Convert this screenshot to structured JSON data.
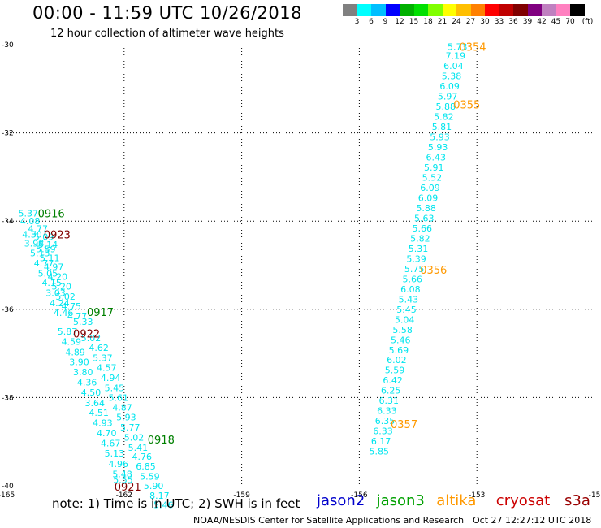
{
  "title": "00:00 - 11:59 UTC 10/26/2018",
  "subtitle": "12 hour collection of altimeter wave heights",
  "colorbar": {
    "colors": [
      "#808080",
      "#00ffff",
      "#00bfff",
      "#0000ff",
      "#00b000",
      "#00e000",
      "#80ff00",
      "#ffff00",
      "#ffbf00",
      "#ff8000",
      "#ff0000",
      "#c00000",
      "#800000",
      "#800080",
      "#c080c0",
      "#ff80c0",
      "#000000"
    ],
    "labels": [
      "3",
      "6",
      "9",
      "12",
      "15",
      "18",
      "21",
      "24",
      "27",
      "30",
      "33",
      "36",
      "39",
      "42",
      "45",
      "70"
    ],
    "unit": "(ft)"
  },
  "axes": {
    "lon_min": -165,
    "lon_max": -150,
    "lat_min": -40,
    "lat_max": -30,
    "lon_labels": [
      "-165",
      "-162",
      "-159",
      "-156",
      "-153",
      "-15"
    ],
    "lat_labels": [
      "-30",
      "-32",
      "-34",
      "-36",
      "-38",
      "-40"
    ],
    "grid": "dotted"
  },
  "tracks": [
    {
      "name": "west-track-a",
      "color": "#00e5ee",
      "points": [
        {
          "lon": -164.7,
          "lat": -33.82,
          "v": "5.37"
        },
        {
          "lon": -164.65,
          "lat": -34.0,
          "v": "4.08"
        },
        {
          "lon": -164.45,
          "lat": -34.17,
          "v": "4.77"
        },
        {
          "lon": -164.6,
          "lat": -34.3,
          "v": "4.30"
        },
        {
          "lon": -164.3,
          "lat": -34.36,
          "v": "5.09"
        },
        {
          "lon": -164.55,
          "lat": -34.5,
          "v": "3.98"
        },
        {
          "lon": -164.2,
          "lat": -34.53,
          "v": "5.14"
        },
        {
          "lon": -164.4,
          "lat": -34.72,
          "v": "5.13"
        },
        {
          "lon": -164.3,
          "lat": -34.95,
          "v": "4.77"
        },
        {
          "lon": -164.2,
          "lat": -35.18,
          "v": "5.05"
        },
        {
          "lon": -164.1,
          "lat": -35.4,
          "v": "4.15"
        },
        {
          "lon": -164.0,
          "lat": -35.63,
          "v": "3.03"
        },
        {
          "lon": -163.9,
          "lat": -35.86,
          "v": "4.24"
        },
        {
          "lon": -163.8,
          "lat": -36.08,
          "v": "4.46"
        },
        {
          "lon": -163.7,
          "lat": -36.5,
          "v": "5.87"
        },
        {
          "lon": -163.6,
          "lat": -36.73,
          "v": "4.59"
        },
        {
          "lon": -163.5,
          "lat": -36.97,
          "v": "4.89"
        },
        {
          "lon": -163.4,
          "lat": -37.19,
          "v": "3.90"
        },
        {
          "lon": -163.3,
          "lat": -37.42,
          "v": "3.80"
        },
        {
          "lon": -163.2,
          "lat": -37.65,
          "v": "4.36"
        },
        {
          "lon": -163.1,
          "lat": -37.88,
          "v": "4.50"
        },
        {
          "lon": -163.0,
          "lat": -38.12,
          "v": "3.64"
        },
        {
          "lon": -162.9,
          "lat": -38.34,
          "v": "4.51"
        },
        {
          "lon": -162.8,
          "lat": -38.57,
          "v": "4.93"
        },
        {
          "lon": -162.7,
          "lat": -38.8,
          "v": "4.70"
        },
        {
          "lon": -162.6,
          "lat": -39.03,
          "v": "4.67"
        },
        {
          "lon": -162.5,
          "lat": -39.26,
          "v": "5.13"
        },
        {
          "lon": -162.4,
          "lat": -39.5,
          "v": "4.96"
        },
        {
          "lon": -162.3,
          "lat": -39.73,
          "v": "5.48"
        },
        {
          "lon": -162.28,
          "lat": -39.86,
          "v": "5.55"
        }
      ]
    },
    {
      "name": "west-track-b",
      "color": "#00e5ee",
      "points": [
        {
          "lon": -164.25,
          "lat": -34.63,
          "v": "5.59"
        },
        {
          "lon": -164.15,
          "lat": -34.83,
          "v": "5.11"
        },
        {
          "lon": -164.05,
          "lat": -35.04,
          "v": "4.97"
        },
        {
          "lon": -163.95,
          "lat": -35.26,
          "v": "4.20"
        },
        {
          "lon": -163.85,
          "lat": -35.48,
          "v": "5.20"
        },
        {
          "lon": -163.75,
          "lat": -35.71,
          "v": "5.02"
        },
        {
          "lon": -163.6,
          "lat": -35.93,
          "v": "4.75"
        },
        {
          "lon": -163.45,
          "lat": -36.15,
          "v": "4.77"
        },
        {
          "lon": -163.3,
          "lat": -36.28,
          "v": "5.33"
        },
        {
          "lon": -163.1,
          "lat": -36.65,
          "v": "5.02"
        },
        {
          "lon": -162.9,
          "lat": -36.87,
          "v": "4.62"
        },
        {
          "lon": -162.8,
          "lat": -37.1,
          "v": "5.37"
        },
        {
          "lon": -162.7,
          "lat": -37.32,
          "v": "4.57"
        },
        {
          "lon": -162.6,
          "lat": -37.55,
          "v": "4.94"
        },
        {
          "lon": -162.5,
          "lat": -37.78,
          "v": "5.45"
        },
        {
          "lon": -162.4,
          "lat": -38.0,
          "v": "5.61"
        },
        {
          "lon": -162.3,
          "lat": -38.22,
          "v": "4.87"
        },
        {
          "lon": -162.2,
          "lat": -38.44,
          "v": "5.93"
        },
        {
          "lon": -162.1,
          "lat": -38.67,
          "v": "5.77"
        },
        {
          "lon": -162.0,
          "lat": -38.9,
          "v": "5.02"
        },
        {
          "lon": -161.9,
          "lat": -39.13,
          "v": "5.41"
        },
        {
          "lon": -161.8,
          "lat": -39.34,
          "v": "4.76"
        },
        {
          "lon": -161.7,
          "lat": -39.56,
          "v": "6.85"
        },
        {
          "lon": -161.6,
          "lat": -39.79,
          "v": "5.59"
        },
        {
          "lon": -161.5,
          "lat": -40.0,
          "v": "5.90"
        },
        {
          "lon": -161.35,
          "lat": -40.22,
          "v": "8.17"
        },
        {
          "lon": -161.25,
          "lat": -40.43,
          "v": "5.46"
        }
      ]
    },
    {
      "name": "east-track",
      "color": "#00e5ee",
      "points": [
        {
          "lon": -153.75,
          "lat": -30.05,
          "v": "5.73"
        },
        {
          "lon": -153.8,
          "lat": -30.25,
          "v": "7.19"
        },
        {
          "lon": -153.85,
          "lat": -30.48,
          "v": "6.04"
        },
        {
          "lon": -153.9,
          "lat": -30.71,
          "v": "5.38"
        },
        {
          "lon": -153.95,
          "lat": -30.94,
          "v": "6.09"
        },
        {
          "lon": -154.0,
          "lat": -31.17,
          "v": "5.97"
        },
        {
          "lon": -154.05,
          "lat": -31.4,
          "v": "5.88"
        },
        {
          "lon": -154.1,
          "lat": -31.63,
          "v": "5.82"
        },
        {
          "lon": -154.15,
          "lat": -31.86,
          "v": "5.81"
        },
        {
          "lon": -154.2,
          "lat": -32.09,
          "v": "5.93"
        },
        {
          "lon": -154.25,
          "lat": -32.32,
          "v": "5.93"
        },
        {
          "lon": -154.3,
          "lat": -32.55,
          "v": "6.43"
        },
        {
          "lon": -154.35,
          "lat": -32.78,
          "v": "5.91"
        },
        {
          "lon": -154.4,
          "lat": -33.01,
          "v": "5.52"
        },
        {
          "lon": -154.45,
          "lat": -33.24,
          "v": "6.09"
        },
        {
          "lon": -154.5,
          "lat": -33.47,
          "v": "6.09"
        },
        {
          "lon": -154.55,
          "lat": -33.7,
          "v": "5.88"
        },
        {
          "lon": -154.6,
          "lat": -33.93,
          "v": "5.63"
        },
        {
          "lon": -154.65,
          "lat": -34.16,
          "v": "5.66"
        },
        {
          "lon": -154.7,
          "lat": -34.39,
          "v": "5.82"
        },
        {
          "lon": -154.75,
          "lat": -34.62,
          "v": "5.31"
        },
        {
          "lon": -154.8,
          "lat": -34.85,
          "v": "5.39"
        },
        {
          "lon": -154.85,
          "lat": -35.08,
          "v": "5.75"
        },
        {
          "lon": -154.9,
          "lat": -35.31,
          "v": "5.66"
        },
        {
          "lon": -154.95,
          "lat": -35.54,
          "v": "6.08"
        },
        {
          "lon": -155.0,
          "lat": -35.77,
          "v": "5.43"
        },
        {
          "lon": -155.05,
          "lat": -36.0,
          "v": "5.45"
        },
        {
          "lon": -155.1,
          "lat": -36.23,
          "v": "5.04"
        },
        {
          "lon": -155.15,
          "lat": -36.46,
          "v": "5.58"
        },
        {
          "lon": -155.2,
          "lat": -36.69,
          "v": "5.46"
        },
        {
          "lon": -155.25,
          "lat": -36.92,
          "v": "5.69"
        },
        {
          "lon": -155.3,
          "lat": -37.15,
          "v": "6.02"
        },
        {
          "lon": -155.35,
          "lat": -37.38,
          "v": "5.59"
        },
        {
          "lon": -155.4,
          "lat": -37.61,
          "v": "6.42"
        },
        {
          "lon": -155.45,
          "lat": -37.84,
          "v": "6.25"
        },
        {
          "lon": -155.5,
          "lat": -38.07,
          "v": "6.31"
        },
        {
          "lon": -155.55,
          "lat": -38.3,
          "v": "6.33"
        },
        {
          "lon": -155.6,
          "lat": -38.53,
          "v": "6.35"
        },
        {
          "lon": -155.65,
          "lat": -38.76,
          "v": "6.33"
        },
        {
          "lon": -155.7,
          "lat": -38.99,
          "v": "6.17"
        },
        {
          "lon": -155.75,
          "lat": -39.22,
          "v": "5.85"
        }
      ]
    }
  ],
  "time_labels": [
    {
      "t": "0916",
      "color": "#008000",
      "lon": -164.2,
      "lat": -33.82
    },
    {
      "t": "0923",
      "color": "#800000",
      "lon": -164.05,
      "lat": -34.3
    },
    {
      "t": "0917",
      "color": "#008000",
      "lon": -162.95,
      "lat": -36.06
    },
    {
      "t": "0922",
      "color": "#800000",
      "lon": -163.3,
      "lat": -36.55
    },
    {
      "t": "0918",
      "color": "#008000",
      "lon": -161.4,
      "lat": -38.95
    },
    {
      "t": "0921",
      "color": "#800000",
      "lon": -162.25,
      "lat": -40.02
    },
    {
      "t": "0354",
      "color": "#ff9900",
      "lon": -153.45,
      "lat": -30.05
    },
    {
      "t": "0355",
      "color": "#ff9900",
      "lon": -153.6,
      "lat": -31.35
    },
    {
      "t": "0356",
      "color": "#ff9900",
      "lon": -154.45,
      "lat": -35.1
    },
    {
      "t": "0357",
      "color": "#ff9900",
      "lon": -155.2,
      "lat": -38.6
    }
  ],
  "note": "note: 1) Time is in UTC; 2) SWH is in feet",
  "legend": [
    {
      "name": "jason2",
      "color": "#0000cc"
    },
    {
      "name": "jason3",
      "color": "#00a000"
    },
    {
      "name": "altika",
      "color": "#ff9900"
    },
    {
      "name": "cryosat",
      "color": "#cc0000"
    },
    {
      "name": "s3a",
      "color": "#990000"
    }
  ],
  "credit": "NOAA/NESDIS Center for Satellite Applications and Research",
  "timestamp": "Oct 27 12:27:12 UTC 2018"
}
